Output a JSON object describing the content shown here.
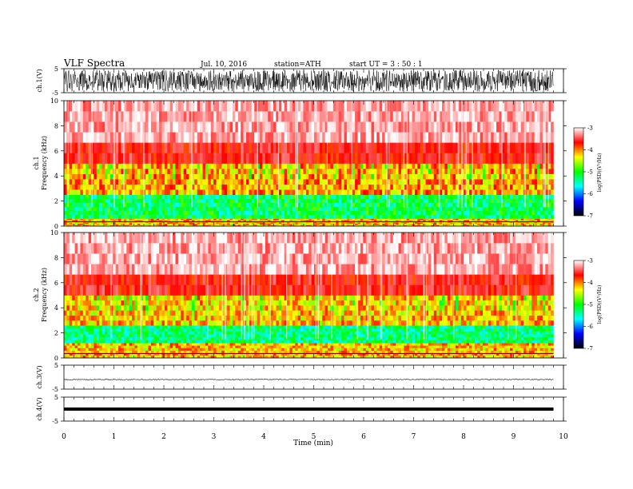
{
  "header": {
    "title": "VLF  Spectra",
    "date": "Jul.  10,  2016",
    "station": "station=ATH",
    "start": "start  UT  =   3  : 50 : 1"
  },
  "colorbar": {
    "label": "log(PSD)(V²/Hz)",
    "ticks": [
      "-3",
      "-4",
      "-5",
      "-6",
      "-7"
    ],
    "stops": [
      "#ffffff",
      "#ff0000",
      "#ffff00",
      "#00ff00",
      "#00ffff",
      "#0000ff",
      "#000000"
    ]
  },
  "chart_data": [
    {
      "type": "line",
      "name": "ch1-waveform",
      "ylabel": "ch.1(V)",
      "ylim": [
        -5,
        5
      ],
      "yticks": [
        "5",
        "-5"
      ],
      "description_values": {
        "amplitude_range": [
          -4.5,
          4.5
        ]
      }
    },
    {
      "type": "heatmap",
      "name": "ch1-spectrogram",
      "ylabel": "ch.1\nFrequency  (kHz)",
      "ylabel_channel": "ch.1",
      "ylabel_axis": "Frequency  (kHz)",
      "ylim": [
        0,
        10
      ],
      "yticks": [
        "0",
        "2",
        "4",
        "6",
        "8",
        "10"
      ],
      "bands": [
        {
          "from_khz": 0.0,
          "to_khz": 0.6,
          "level": -4.2
        },
        {
          "from_khz": 0.6,
          "to_khz": 2.5,
          "level": -5.2
        },
        {
          "from_khz": 2.5,
          "to_khz": 5.0,
          "level": -4.1
        },
        {
          "from_khz": 5.0,
          "to_khz": 10.0,
          "level": -3.4
        }
      ]
    },
    {
      "type": "heatmap",
      "name": "ch2-spectrogram",
      "ylabel_channel": "ch.2",
      "ylabel_axis": "Frequency  (kHz)",
      "ylim": [
        0,
        10
      ],
      "yticks": [
        "0",
        "2",
        "4",
        "6",
        "8",
        "10"
      ],
      "bands": [
        {
          "from_khz": 0.0,
          "to_khz": 1.2,
          "level": -4.2
        },
        {
          "from_khz": 1.2,
          "to_khz": 2.6,
          "level": -5.3
        },
        {
          "from_khz": 2.6,
          "to_khz": 5.0,
          "level": -4.2
        },
        {
          "from_khz": 5.0,
          "to_khz": 10.0,
          "level": -3.4
        }
      ]
    },
    {
      "type": "line",
      "name": "ch3-waveform",
      "ylabel": "ch.3(V)",
      "ylim": [
        -5,
        5
      ],
      "yticks": [
        "5",
        "-5"
      ],
      "level": -1.0
    },
    {
      "type": "line",
      "name": "ch4-waveform",
      "ylabel": "ch.4(V)",
      "ylim": [
        -5,
        5
      ],
      "yticks": [
        "5",
        "-5"
      ],
      "level": 0
    }
  ],
  "xaxis": {
    "xlabel": "Time  (min)",
    "xlim": [
      0,
      10
    ],
    "ticks": [
      "0",
      "1",
      "2",
      "3",
      "4",
      "5",
      "6",
      "7",
      "8",
      "9",
      "10"
    ],
    "data_end_min": 9.8
  }
}
